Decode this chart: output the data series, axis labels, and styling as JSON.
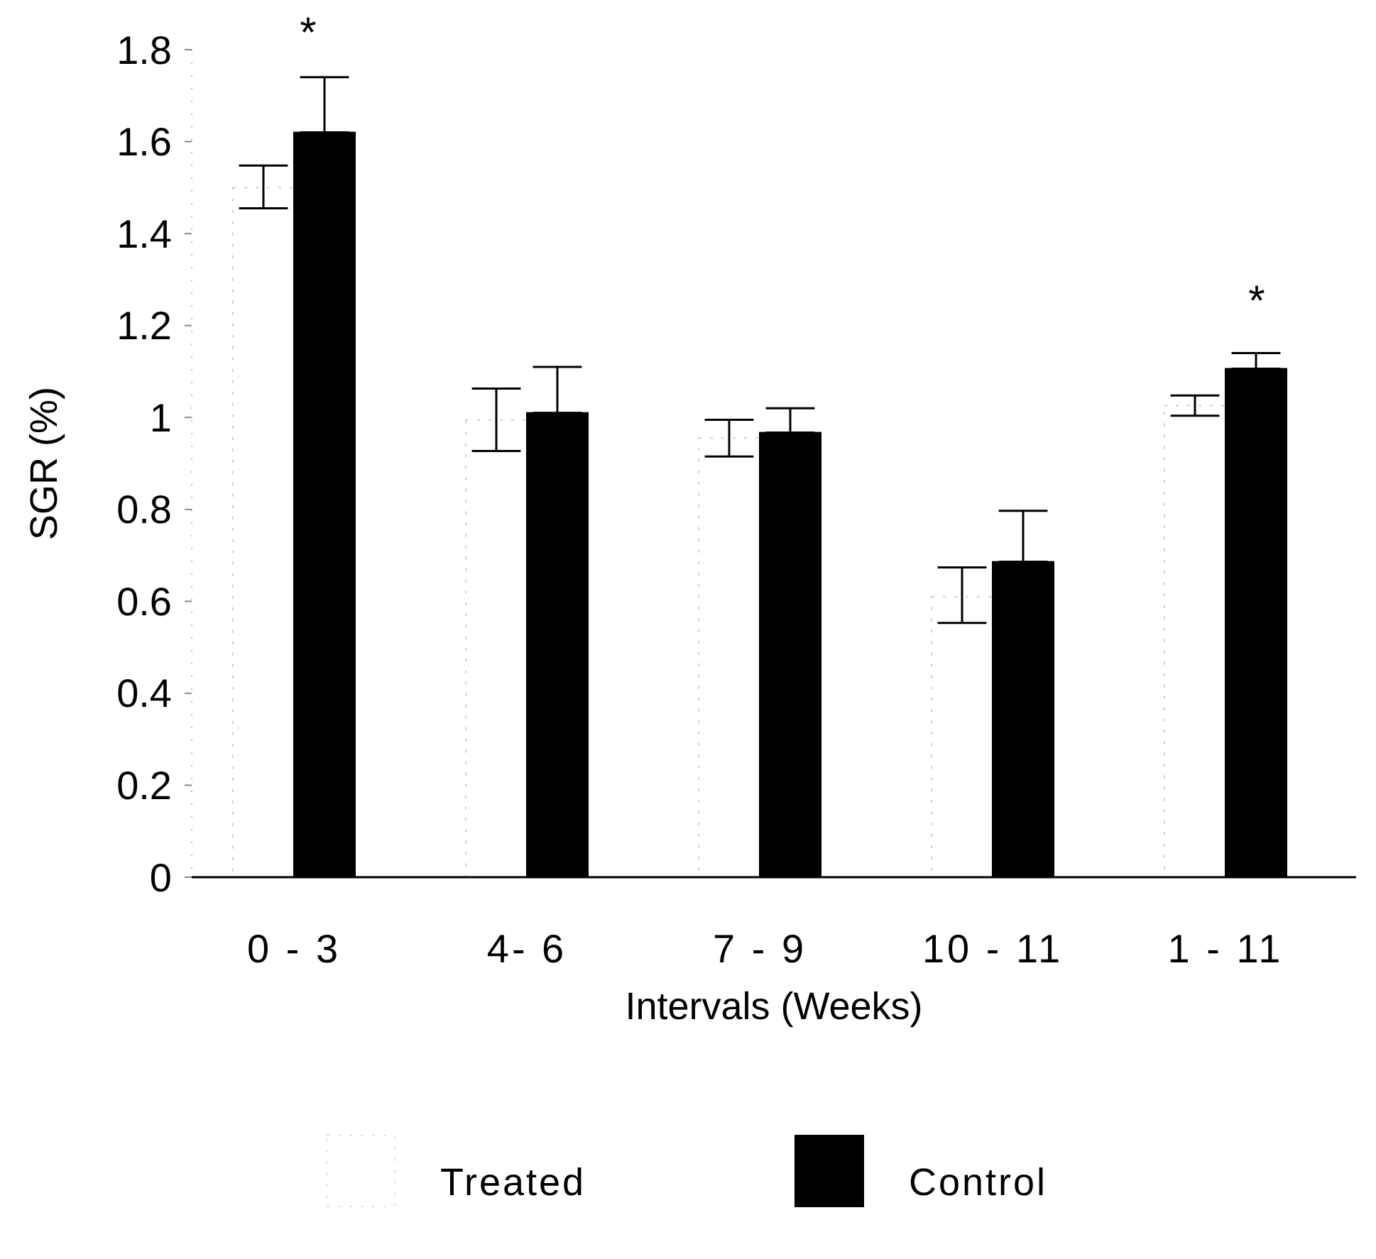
{
  "chart_data": {
    "type": "bar",
    "xlabel": "Intervals (Weeks)",
    "ylabel": "SGR (%)",
    "categories": [
      "0 - 3",
      "4- 6",
      "7 - 9",
      "10 - 11",
      "1 - 11"
    ],
    "series": [
      {
        "name": "Treated",
        "color": "#ffffff",
        "values": [
          1.5,
          0.995,
          0.955,
          0.61,
          1.026
        ],
        "errors": [
          [
            1.455,
            1.548
          ],
          [
            0.927,
            1.063
          ],
          [
            0.915,
            0.995
          ],
          [
            0.553,
            0.674
          ],
          [
            1.004,
            1.048
          ]
        ]
      },
      {
        "name": "Control",
        "color": "#000000",
        "values": [
          1.62,
          1.01,
          0.967,
          0.686,
          1.106
        ],
        "errors": [
          [
            1.62,
            1.74
          ],
          [
            1.01,
            1.11
          ],
          [
            0.967,
            1.02
          ],
          [
            0.686,
            0.797
          ],
          [
            1.106,
            1.14
          ]
        ]
      }
    ],
    "ylim": [
      0,
      1.8
    ],
    "yticks": [
      0,
      0.2,
      0.4,
      0.6,
      0.8,
      1,
      1.2,
      1.4,
      1.6,
      1.8
    ],
    "annotations": [
      "*",
      "*"
    ],
    "grid": false,
    "legend": "bottom"
  }
}
